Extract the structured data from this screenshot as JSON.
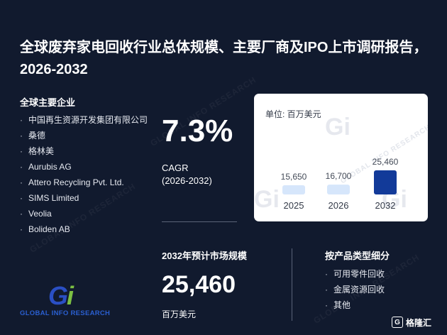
{
  "title": "全球废弃家电回收行业总体规模、主要厂商及IPO上市调研报告，2026-2032",
  "companies": {
    "heading": "全球主要企业",
    "bullet": "·",
    "items": [
      "中国再生资源开发集团有限公司",
      "桑德",
      "格林美",
      "Aurubis AG",
      "Attero Recycling Pvt. Ltd.",
      "SIMS Limited",
      "Veolia",
      "Boliden AB"
    ]
  },
  "cagr": {
    "value": "7.3%",
    "label": "CAGR",
    "period": "(2026-2032)"
  },
  "chart_data": {
    "type": "bar",
    "unit_label": "单位: 百万美元",
    "categories": [
      "2025",
      "2026",
      "2032"
    ],
    "values": [
      15650,
      16700,
      25460
    ],
    "value_labels": [
      "15,650",
      "16,700",
      "25,460"
    ],
    "colors": [
      "#d6e6fb",
      "#d6e6fb",
      "#123a99"
    ]
  },
  "market": {
    "heading": "2032年预计市场规模",
    "value": "25,460",
    "unit": "百万美元"
  },
  "segments": {
    "heading": "按产品类型细分",
    "bullet": "·",
    "items": [
      "可用零件回收",
      "金属资源回收",
      "其他"
    ]
  },
  "logo": {
    "mark_g": "G",
    "mark_i": "i",
    "text": "GLOBAL INFO RESEARCH"
  },
  "watermark": {
    "text": "GLOBAL INFO RESEARCH",
    "mark": "Gi"
  },
  "corner_badge": {
    "icon": "G",
    "text": "格隆汇"
  }
}
